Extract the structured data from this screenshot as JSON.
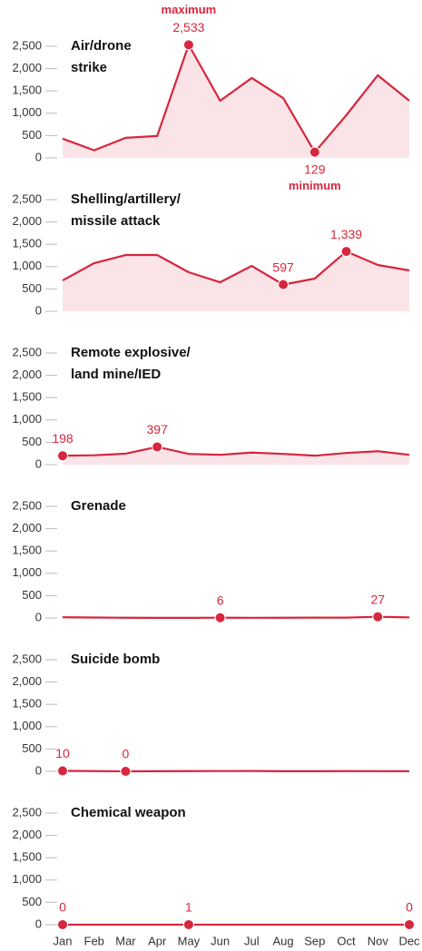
{
  "chart_data": [
    {
      "type": "line",
      "title": "Air/drone\nstrike",
      "color": "#d7263d",
      "fill": "#fbe4e7",
      "values": [
        430,
        170,
        450,
        490,
        2533,
        1280,
        1790,
        1340,
        129,
        955,
        1850,
        1280
      ],
      "value_labels": [
        null,
        null,
        null,
        null,
        "2,533",
        null,
        null,
        null,
        "129",
        null,
        null,
        null
      ],
      "annotations": [
        {
          "index": 4,
          "text": "maximum",
          "position": "above"
        },
        {
          "index": 8,
          "text": "minimum",
          "position": "below"
        }
      ],
      "ylim": [
        0,
        2500
      ],
      "yticks": [
        0,
        500,
        {
          "value": 1000,
          "label": "1,000"
        },
        {
          "value": 1500,
          "label": "1,500"
        },
        {
          "value": 2000,
          "label": "2,000"
        },
        {
          "value": 2500,
          "label": "2,500"
        }
      ]
    },
    {
      "type": "line",
      "title": "Shelling/artillery/\nmissile attack",
      "color": "#d7263d",
      "fill": "#fbe4e7",
      "values": [
        690,
        1077,
        1260,
        1260,
        874,
        650,
        1016,
        597,
        732,
        1339,
        1037,
        915
      ],
      "value_labels": [
        null,
        null,
        null,
        null,
        null,
        null,
        null,
        "597",
        null,
        "1,339",
        null,
        null
      ],
      "ylim": [
        0,
        2500
      ],
      "yticks": [
        0,
        500,
        {
          "value": 1000,
          "label": "1,000"
        },
        {
          "value": 1500,
          "label": "1,500"
        },
        {
          "value": 2000,
          "label": "2,000"
        },
        {
          "value": 2500,
          "label": "2,500"
        }
      ]
    },
    {
      "type": "line",
      "title": "Remote explosive/\nland mine/IED",
      "color": "#d7263d",
      "fill": "#fbe4e7",
      "values": [
        198,
        210,
        245,
        397,
        240,
        220,
        270,
        240,
        200,
        260,
        300,
        220
      ],
      "value_labels": [
        "198",
        null,
        null,
        "397",
        null,
        null,
        null,
        null,
        null,
        null,
        null,
        null
      ],
      "ylim": [
        0,
        2500
      ],
      "yticks": [
        0,
        500,
        {
          "value": 1000,
          "label": "1,000"
        },
        {
          "value": 1500,
          "label": "1,500"
        },
        {
          "value": 2000,
          "label": "2,000"
        },
        {
          "value": 2500,
          "label": "2,500"
        }
      ]
    },
    {
      "type": "line",
      "title": "Grenade",
      "color": "#d7263d",
      "fill": "#fbe4e7",
      "values": [
        15,
        10,
        5,
        3,
        2,
        6,
        4,
        5,
        7,
        8,
        27,
        12
      ],
      "value_labels": [
        null,
        null,
        null,
        null,
        null,
        "6",
        null,
        null,
        null,
        null,
        "27",
        null
      ],
      "ylim": [
        0,
        2500
      ],
      "yticks": [
        0,
        500,
        {
          "value": 1000,
          "label": "1,000"
        },
        {
          "value": 1500,
          "label": "1,500"
        },
        {
          "value": 2000,
          "label": "2,000"
        },
        {
          "value": 2500,
          "label": "2,500"
        }
      ]
    },
    {
      "type": "line",
      "title": "Suicide bomb",
      "color": "#d7263d",
      "fill": "#fbe4e7",
      "values": [
        10,
        5,
        0,
        3,
        5,
        6,
        8,
        3,
        2,
        5,
        4,
        3
      ],
      "value_labels": [
        "10",
        null,
        "0",
        null,
        null,
        null,
        null,
        null,
        null,
        null,
        null,
        null
      ],
      "ylim": [
        0,
        2500
      ],
      "yticks": [
        0,
        500,
        {
          "value": 1000,
          "label": "1,000"
        },
        {
          "value": 1500,
          "label": "1,500"
        },
        {
          "value": 2000,
          "label": "2,000"
        },
        {
          "value": 2500,
          "label": "2,500"
        }
      ]
    },
    {
      "type": "line",
      "title": "Chemical weapon",
      "color": "#d7263d",
      "fill": "#fbe4e7",
      "categories": [
        "Jan",
        "Feb",
        "Mar",
        "Apr",
        "May",
        "Jun",
        "Jul",
        "Aug",
        "Sep",
        "Oct",
        "Nov",
        "Dec"
      ],
      "values": [
        0,
        0,
        0,
        0,
        1,
        0,
        0,
        0,
        0,
        0,
        0,
        0
      ],
      "value_labels": [
        "0",
        null,
        null,
        null,
        "1",
        null,
        null,
        null,
        null,
        null,
        null,
        "0"
      ],
      "ylim": [
        0,
        2500
      ],
      "yticks": [
        0,
        500,
        {
          "value": 1000,
          "label": "1,000"
        },
        {
          "value": 1500,
          "label": "1,500"
        },
        {
          "value": 2000,
          "label": "2,000"
        },
        {
          "value": 2500,
          "label": "2,500"
        }
      ]
    }
  ]
}
